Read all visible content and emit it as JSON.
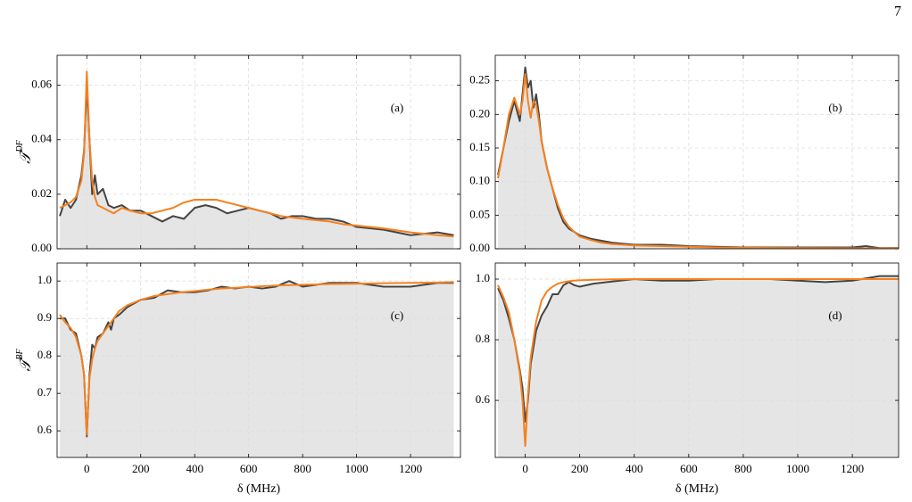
{
  "page_number": "7",
  "chart_data": [
    {
      "type": "line",
      "label": "(a)",
      "ylabel": {
        "base": "𝒯",
        "sup": "DF"
      },
      "xlim": [
        -110,
        1385
      ],
      "xticks": [
        0,
        200,
        400,
        600,
        800,
        1000,
        1200
      ],
      "ylim": [
        0,
        0.071
      ],
      "yticks": [
        {
          "value": 0,
          "label": "0.00"
        },
        {
          "value": 0.02,
          "label": "0.02"
        },
        {
          "value": 0.04,
          "label": "0.04"
        },
        {
          "value": 0.06,
          "label": "0.06"
        }
      ],
      "grid": true,
      "x": [
        -100,
        -80,
        -60,
        -40,
        -20,
        -10,
        0,
        10,
        20,
        30,
        40,
        60,
        80,
        100,
        130,
        160,
        200,
        240,
        280,
        320,
        360,
        400,
        440,
        480,
        520,
        560,
        600,
        640,
        680,
        720,
        760,
        800,
        850,
        900,
        950,
        1000,
        1100,
        1200,
        1300,
        1360
      ],
      "series": [
        {
          "color": "#444444",
          "fill": "#e5e5e5",
          "values": [
            0.012,
            0.018,
            0.015,
            0.018,
            0.027,
            0.036,
            0.06,
            0.04,
            0.02,
            0.027,
            0.02,
            0.022,
            0.016,
            0.015,
            0.016,
            0.014,
            0.014,
            0.012,
            0.01,
            0.012,
            0.011,
            0.015,
            0.016,
            0.015,
            0.013,
            0.014,
            0.015,
            0.014,
            0.013,
            0.011,
            0.012,
            0.012,
            0.011,
            0.011,
            0.01,
            0.008,
            0.007,
            0.005,
            0.006,
            0.005
          ]
        },
        {
          "color": "#f5811f",
          "values": [
            0.015,
            0.016,
            0.017,
            0.019,
            0.025,
            0.035,
            0.065,
            0.04,
            0.025,
            0.019,
            0.016,
            0.015,
            0.014,
            0.013,
            0.015,
            0.014,
            0.013,
            0.013,
            0.014,
            0.015,
            0.017,
            0.018,
            0.018,
            0.018,
            0.017,
            0.016,
            0.015,
            0.014,
            0.013,
            0.012,
            0.0115,
            0.011,
            0.0105,
            0.01,
            0.009,
            0.0085,
            0.0075,
            0.006,
            0.005,
            0.0045
          ]
        }
      ]
    },
    {
      "type": "line",
      "label": "(b)",
      "xlim": [
        -110,
        1370
      ],
      "xticks": [
        0,
        200,
        400,
        600,
        800,
        1000,
        1200
      ],
      "ylim": [
        0,
        0.288
      ],
      "yticks": [
        {
          "value": 0,
          "label": "0.00"
        },
        {
          "value": 0.05,
          "label": "0.05"
        },
        {
          "value": 0.1,
          "label": "0.10"
        },
        {
          "value": 0.15,
          "label": "0.15"
        },
        {
          "value": 0.2,
          "label": "0.20"
        },
        {
          "value": 0.25,
          "label": "0.25"
        }
      ],
      "grid": true,
      "x": [
        -100,
        -80,
        -60,
        -40,
        -20,
        -10,
        0,
        10,
        20,
        30,
        40,
        50,
        60,
        80,
        100,
        120,
        140,
        160,
        180,
        200,
        240,
        280,
        320,
        400,
        500,
        600,
        700,
        800,
        900,
        1000,
        1100,
        1200,
        1250,
        1300,
        1370
      ],
      "series": [
        {
          "color": "#444444",
          "fill": "#e5e5e5",
          "values": [
            0.11,
            0.15,
            0.19,
            0.22,
            0.19,
            0.23,
            0.27,
            0.24,
            0.25,
            0.21,
            0.23,
            0.2,
            0.16,
            0.12,
            0.09,
            0.06,
            0.04,
            0.03,
            0.025,
            0.02,
            0.015,
            0.012,
            0.009,
            0.006,
            0.006,
            0.004,
            0.003,
            0.002,
            0.002,
            0.002,
            0.002,
            0.002,
            0.004,
            0.001,
            0.001
          ]
        },
        {
          "color": "#f5811f",
          "values": [
            0.105,
            0.15,
            0.2,
            0.225,
            0.2,
            0.22,
            0.26,
            0.22,
            0.195,
            0.22,
            0.215,
            0.19,
            0.16,
            0.12,
            0.09,
            0.065,
            0.045,
            0.033,
            0.025,
            0.018,
            0.013,
            0.009,
            0.007,
            0.005,
            0.004,
            0.003,
            0.002,
            0.0015,
            0.0012,
            0.001,
            0.0008,
            0.0006,
            0.0005,
            0.0005,
            0.0004
          ]
        }
      ]
    },
    {
      "type": "line",
      "label": "(c)",
      "ylabel": {
        "base": "𝒯",
        "sup": "BF"
      },
      "xlabel": "δ (MHz)",
      "xlim": [
        -110,
        1385
      ],
      "xticks": [
        0,
        200,
        400,
        600,
        800,
        1000,
        1200
      ],
      "ylim": [
        0.529,
        1.048
      ],
      "yticks": [
        0.6,
        0.7,
        0.8,
        0.9,
        {
          "value": 1,
          "label": "1.0"
        }
      ],
      "grid": true,
      "x": [
        -100,
        -80,
        -60,
        -40,
        -20,
        -10,
        0,
        10,
        20,
        30,
        40,
        60,
        80,
        90,
        100,
        120,
        150,
        200,
        250,
        300,
        350,
        400,
        450,
        500,
        550,
        600,
        650,
        700,
        750,
        800,
        850,
        900,
        1000,
        1100,
        1200,
        1300,
        1360
      ],
      "series": [
        {
          "color": "#444444",
          "fill": "#e5e5e5",
          "values": [
            0.9,
            0.9,
            0.87,
            0.86,
            0.8,
            0.75,
            0.585,
            0.75,
            0.83,
            0.82,
            0.85,
            0.86,
            0.89,
            0.87,
            0.9,
            0.91,
            0.93,
            0.95,
            0.955,
            0.975,
            0.97,
            0.97,
            0.975,
            0.985,
            0.98,
            0.985,
            0.98,
            0.985,
            1.0,
            0.985,
            0.99,
            0.995,
            0.995,
            0.985,
            0.985,
            0.995,
            0.995
          ]
        },
        {
          "color": "#f5811f",
          "values": [
            0.91,
            0.89,
            0.875,
            0.85,
            0.8,
            0.75,
            0.59,
            0.74,
            0.79,
            0.82,
            0.84,
            0.86,
            0.88,
            0.89,
            0.9,
            0.92,
            0.935,
            0.95,
            0.96,
            0.965,
            0.97,
            0.973,
            0.977,
            0.98,
            0.982,
            0.984,
            0.986,
            0.988,
            0.989,
            0.99,
            0.991,
            0.992,
            0.993,
            0.994,
            0.995,
            0.996,
            0.997
          ]
        }
      ]
    },
    {
      "type": "line",
      "label": "(d)",
      "xlabel": "δ (MHz)",
      "xlim": [
        -110,
        1370
      ],
      "xticks": [
        0,
        200,
        400,
        600,
        800,
        1000,
        1200
      ],
      "ylim": [
        0.412,
        1.053
      ],
      "yticks": [
        0.6,
        0.8,
        {
          "value": 1,
          "label": "1.0"
        }
      ],
      "grid": true,
      "x": [
        -100,
        -80,
        -60,
        -40,
        -20,
        -10,
        0,
        10,
        20,
        40,
        60,
        80,
        100,
        120,
        140,
        160,
        180,
        200,
        250,
        300,
        400,
        500,
        600,
        700,
        800,
        900,
        1000,
        1100,
        1200,
        1300,
        1370
      ],
      "series": [
        {
          "color": "#444444",
          "fill": "#e5e5e5",
          "values": [
            0.97,
            0.93,
            0.87,
            0.8,
            0.7,
            0.64,
            0.53,
            0.6,
            0.72,
            0.83,
            0.88,
            0.91,
            0.95,
            0.95,
            0.98,
            0.99,
            0.98,
            0.975,
            0.985,
            0.99,
            1.0,
            0.995,
            0.995,
            1.0,
            1.0,
            1.0,
            0.995,
            0.99,
            0.995,
            1.01,
            1.01
          ]
        },
        {
          "color": "#f5811f",
          "values": [
            0.98,
            0.94,
            0.89,
            0.8,
            0.69,
            0.6,
            0.45,
            0.62,
            0.74,
            0.86,
            0.93,
            0.96,
            0.975,
            0.985,
            0.99,
            0.993,
            0.995,
            0.996,
            0.998,
            0.999,
            1.0,
            1.0,
            1.0,
            1.0,
            1.0,
            1.0,
            1.0,
            1.0,
            1.0,
            1.0,
            1.0
          ]
        }
      ]
    }
  ]
}
